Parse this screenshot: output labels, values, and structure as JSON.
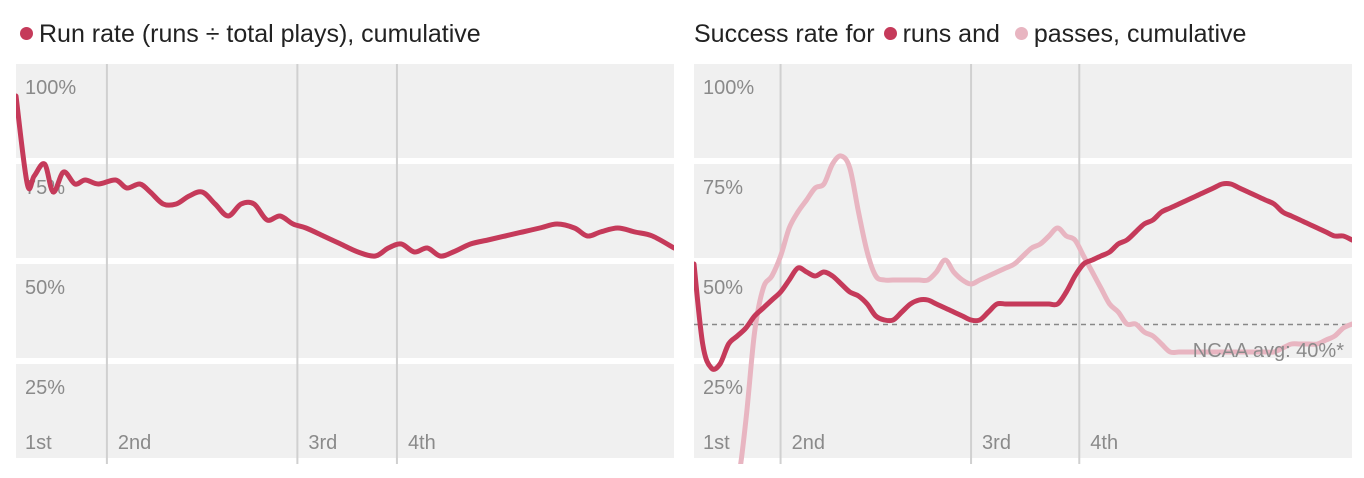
{
  "colors": {
    "run": "#c53a5a",
    "pass": "#e8b5c1",
    "panel": "#f0f0f0",
    "grid": "#d0d0d0",
    "label": "#8a8a8a"
  },
  "chart_data": [
    {
      "type": "line",
      "title_pre": "Run rate (runs ÷ total plays), cumulative",
      "y_ticks": [
        "100%",
        "75%",
        "50%",
        "25%"
      ],
      "ylim": [
        0,
        100
      ],
      "quarters": [
        "1st",
        "2nd",
        "3rd",
        "4th"
      ],
      "quarter_starts": [
        0,
        10.5,
        32.5,
        44
      ],
      "xlim": [
        0,
        76
      ],
      "series": [
        {
          "color_key": "run",
          "x": [
            0,
            1.3,
            2.1,
            3.3,
            4.3,
            5.5,
            6.8,
            8.0,
            9.5,
            11.5,
            12.8,
            14.3,
            15.5,
            17.0,
            18.5,
            20.0,
            21.5,
            23.0,
            24.5,
            26.0,
            27.5,
            29.0,
            30.5,
            32.0,
            33.5,
            35.5,
            37.5,
            39.5,
            41.5,
            43.0,
            44.5,
            46.0,
            47.5,
            49.0,
            50.5,
            52.5,
            54.5,
            56.5,
            58.5,
            60.5,
            62.5,
            64.5,
            66.0,
            67.5,
            69.5,
            71.5,
            73.5,
            76.0
          ],
          "y": [
            97,
            75,
            77,
            80,
            73,
            78,
            75,
            76,
            75,
            76,
            74,
            75,
            73,
            70,
            70,
            72,
            73,
            70,
            67,
            70,
            70,
            66,
            67,
            65,
            64,
            62,
            60,
            58,
            57,
            59,
            60,
            58,
            59,
            57,
            58,
            60,
            61,
            62,
            63,
            64,
            65,
            64,
            62,
            63,
            64,
            63,
            62,
            59
          ]
        }
      ]
    },
    {
      "type": "line",
      "title_pre": "Success rate for",
      "title_mid": "runs and",
      "title_post": "passes, cumulative",
      "y_ticks": [
        "100%",
        "75%",
        "50%",
        "25%"
      ],
      "ylim": [
        0,
        100
      ],
      "quarters": [
        "1st",
        "2nd",
        "3rd",
        "4th"
      ],
      "quarter_starts": [
        0,
        10,
        32,
        44.5
      ],
      "xlim": [
        0,
        76
      ],
      "reference_line": {
        "value": 40,
        "label": "NCAA avg: 40%*"
      },
      "series": [
        {
          "color_key": "run",
          "name": "runs",
          "x": [
            0,
            1.0,
            2.0,
            3.0,
            4.0,
            5.0,
            6.0,
            7.0,
            8.0,
            9.0,
            10.0,
            11.0,
            12.0,
            13.0,
            14.0,
            15.0,
            16.0,
            17.0,
            18.0,
            19.0,
            20.0,
            21.0,
            22.0,
            23.0,
            24.0,
            25.0,
            26.0,
            27.0,
            28.0,
            29.0,
            30.0,
            31.0,
            32.0,
            33.0,
            34.0,
            35.0,
            36.0,
            37.0,
            38.0,
            39.0,
            40.0,
            41.0,
            42.0,
            43.0,
            44.0,
            45.0,
            46.0,
            47.0,
            48.0,
            49.0,
            50.0,
            51.0,
            52.0,
            53.0,
            54.0,
            55.0,
            56.0,
            57.0,
            58.0,
            59.0,
            60.0,
            61.0,
            62.0,
            63.0,
            64.0,
            65.0,
            66.0,
            67.0,
            68.0,
            69.0,
            70.0,
            71.0,
            72.0,
            73.0,
            74.0,
            75.0,
            76.0
          ],
          "y": [
            55,
            35,
            29,
            30,
            35,
            37,
            39,
            42,
            44,
            46,
            48,
            51,
            54,
            53,
            52,
            53,
            52,
            50,
            48,
            47,
            45,
            42,
            41,
            41,
            43,
            45,
            46,
            46,
            45,
            44,
            43,
            42,
            41,
            41,
            43,
            45,
            45,
            45,
            45,
            45,
            45,
            45,
            45,
            48,
            52,
            55,
            56,
            57,
            58,
            60,
            61,
            63,
            65,
            66,
            68,
            69,
            70,
            71,
            72,
            73,
            74,
            75,
            75,
            74,
            73,
            72,
            71,
            70,
            68,
            67,
            66,
            65,
            64,
            63,
            62,
            62,
            61
          ]
        },
        {
          "color_key": "pass",
          "name": "passes",
          "x": [
            0,
            1.0,
            2.0,
            3.0,
            4.0,
            5.0,
            6.0,
            7.0,
            8.0,
            9.0,
            10.0,
            11.0,
            12.0,
            13.0,
            14.0,
            15.0,
            16.0,
            17.0,
            18.0,
            19.0,
            20.0,
            21.0,
            22.0,
            23.0,
            24.0,
            25.0,
            26.0,
            27.0,
            28.0,
            29.0,
            30.0,
            31.0,
            32.0,
            33.0,
            34.0,
            35.0,
            36.0,
            37.0,
            38.0,
            39.0,
            40.0,
            41.0,
            42.0,
            43.0,
            44.0,
            45.0,
            46.0,
            47.0,
            48.0,
            49.0,
            50.0,
            51.0,
            52.0,
            53.0,
            54.0,
            55.0,
            56.0,
            57.0,
            58.0,
            59.0,
            60.0,
            61.0,
            62.0,
            63.0,
            64.0,
            65.0,
            66.0,
            67.0,
            68.0,
            69.0,
            70.0,
            71.0,
            72.0,
            73.0,
            74.0,
            75.0,
            76.0
          ],
          "y": [
            0,
            0,
            0,
            0,
            0,
            0,
            16,
            38,
            49,
            52,
            57,
            64,
            68,
            71,
            74,
            75,
            80,
            82,
            79,
            68,
            58,
            52,
            51,
            51,
            51,
            51,
            51,
            51,
            53,
            56,
            53,
            51,
            50,
            51,
            52,
            53,
            54,
            55,
            57,
            59,
            60,
            62,
            64,
            62,
            61,
            57,
            53,
            49,
            45,
            43,
            40,
            40,
            38,
            37,
            35,
            33,
            33,
            33,
            33,
            33,
            33,
            33,
            33,
            33,
            33,
            33,
            33,
            33,
            34,
            35,
            35,
            35,
            35,
            36,
            37,
            39,
            40
          ]
        }
      ]
    }
  ]
}
